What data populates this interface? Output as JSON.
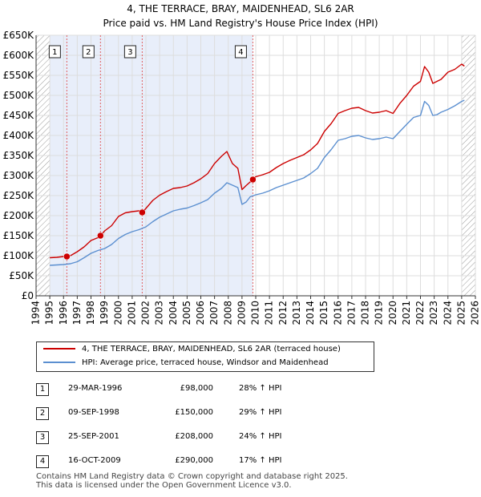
{
  "chart_data": {
    "type": "line",
    "title": "4, THE TERRACE, BRAY, MAIDENHEAD, SL6 2AR",
    "subtitle": "Price paid vs. HM Land Registry's House Price Index (HPI)",
    "xlim": [
      1994,
      2026
    ],
    "ylim": [
      0,
      650000
    ],
    "y_ticks": [
      0,
      50000,
      100000,
      150000,
      200000,
      250000,
      300000,
      350000,
      400000,
      450000,
      500000,
      550000,
      600000,
      650000
    ],
    "y_tick_labels": [
      "£0",
      "£50K",
      "£100K",
      "£150K",
      "£200K",
      "£250K",
      "£300K",
      "£350K",
      "£400K",
      "£450K",
      "£500K",
      "£550K",
      "£600K",
      "£650K"
    ],
    "x_ticks": [
      1994,
      1995,
      1996,
      1997,
      1998,
      1999,
      2000,
      2001,
      2002,
      2003,
      2004,
      2005,
      2006,
      2007,
      2008,
      2009,
      2010,
      2011,
      2012,
      2013,
      2014,
      2015,
      2016,
      2017,
      2018,
      2019,
      2020,
      2021,
      2022,
      2023,
      2024,
      2025,
      2026
    ],
    "x_tick_labels": [
      "1994",
      "1995",
      "1996",
      "1997",
      "1998",
      "1999",
      "2000",
      "2001",
      "2002",
      "2003",
      "2004",
      "2005",
      "2006",
      "2007",
      "2008",
      "2009",
      "2010",
      "2011",
      "2012",
      "2013",
      "2014",
      "2015",
      "2016",
      "2017",
      "2018",
      "2019",
      "2020",
      "2021",
      "2022",
      "2023",
      "2024",
      "2025",
      "2026"
    ],
    "grid": true,
    "shaded_ranges": [
      [
        1995.0,
        2009.79
      ]
    ],
    "hatched_ranges": [
      [
        1994.0,
        1995.0
      ],
      [
        2025.0,
        2026.0
      ]
    ],
    "series": [
      {
        "name": "4, THE TERRACE, BRAY, MAIDENHEAD, SL6 2AR (terraced house)",
        "color": "#cc0000",
        "x": [
          1995.0,
          1995.5,
          1996.0,
          1996.24,
          1996.5,
          1997.0,
          1997.5,
          1998.0,
          1998.5,
          1998.69,
          1999.0,
          1999.5,
          2000.0,
          2000.5,
          2001.0,
          2001.5,
          2001.73,
          2002.0,
          2002.5,
          2003.0,
          2003.5,
          2004.0,
          2004.5,
          2005.0,
          2005.5,
          2006.0,
          2006.5,
          2007.0,
          2007.5,
          2007.9,
          2008.3,
          2008.7,
          2009.0,
          2009.3,
          2009.79,
          2010.0,
          2010.5,
          2011.0,
          2011.5,
          2012.0,
          2012.5,
          2013.0,
          2013.5,
          2014.0,
          2014.5,
          2015.0,
          2015.5,
          2016.0,
          2016.5,
          2017.0,
          2017.5,
          2018.0,
          2018.5,
          2019.0,
          2019.5,
          2020.0,
          2020.5,
          2021.0,
          2021.5,
          2022.0,
          2022.3,
          2022.6,
          2022.9,
          2023.2,
          2023.5,
          2024.0,
          2024.5,
          2025.0,
          2025.2
        ],
        "values": [
          95000,
          96000,
          98000,
          98000,
          100000,
          110000,
          122000,
          138000,
          145000,
          150000,
          162000,
          175000,
          198000,
          207000,
          210000,
          212000,
          208000,
          218000,
          238000,
          251000,
          260000,
          268000,
          270000,
          274000,
          282000,
          292000,
          305000,
          330000,
          348000,
          360000,
          330000,
          318000,
          265000,
          275000,
          290000,
          297000,
          302000,
          308000,
          320000,
          330000,
          338000,
          345000,
          352000,
          364000,
          380000,
          410000,
          430000,
          455000,
          462000,
          468000,
          470000,
          462000,
          456000,
          458000,
          462000,
          455000,
          480000,
          500000,
          523000,
          535000,
          572000,
          558000,
          530000,
          535000,
          540000,
          558000,
          565000,
          578000,
          573000
        ]
      },
      {
        "name": "HPI: Average price, terraced house, Windsor and Maidenhead",
        "color": "#5b8fd0",
        "x": [
          1995.0,
          1995.5,
          1996.0,
          1996.5,
          1997.0,
          1997.5,
          1998.0,
          1998.5,
          1999.0,
          1999.5,
          2000.0,
          2000.5,
          2001.0,
          2001.5,
          2002.0,
          2002.5,
          2003.0,
          2003.5,
          2004.0,
          2004.5,
          2005.0,
          2005.5,
          2006.0,
          2006.5,
          2007.0,
          2007.5,
          2007.9,
          2008.3,
          2008.7,
          2009.0,
          2009.3,
          2009.6,
          2010.0,
          2010.5,
          2011.0,
          2011.5,
          2012.0,
          2012.5,
          2013.0,
          2013.5,
          2014.0,
          2014.5,
          2015.0,
          2015.5,
          2016.0,
          2016.5,
          2017.0,
          2017.5,
          2018.0,
          2018.5,
          2019.0,
          2019.5,
          2020.0,
          2020.5,
          2021.0,
          2021.5,
          2022.0,
          2022.3,
          2022.6,
          2022.9,
          2023.2,
          2023.5,
          2024.0,
          2024.5,
          2025.0,
          2025.2
        ],
        "values": [
          76000,
          77000,
          78000,
          80000,
          85000,
          95000,
          106000,
          113000,
          118000,
          128000,
          143000,
          153000,
          160000,
          165000,
          172000,
          185000,
          196000,
          204000,
          212000,
          216000,
          219000,
          225000,
          232000,
          240000,
          256000,
          268000,
          282000,
          276000,
          270000,
          228000,
          234000,
          247000,
          252000,
          256000,
          262000,
          270000,
          276000,
          282000,
          288000,
          294000,
          305000,
          318000,
          345000,
          365000,
          388000,
          392000,
          398000,
          400000,
          394000,
          390000,
          392000,
          396000,
          392000,
          410000,
          428000,
          445000,
          450000,
          485000,
          475000,
          450000,
          452000,
          458000,
          465000,
          474000,
          485000,
          488000
        ]
      }
    ],
    "sales": [
      {
        "label": "1",
        "x": 1996.24,
        "value": 98000
      },
      {
        "label": "2",
        "x": 1998.69,
        "value": 150000
      },
      {
        "label": "3",
        "x": 2001.73,
        "value": 208000
      },
      {
        "label": "4",
        "x": 2009.79,
        "value": 290000
      }
    ]
  },
  "legend": {
    "property_label": "4, THE TERRACE, BRAY, MAIDENHEAD, SL6 2AR (terraced house)",
    "hpi_label": "HPI: Average price, terraced house, Windsor and Maidenhead"
  },
  "transactions": [
    {
      "num": "1",
      "date": "29-MAR-1996",
      "price": "£98,000",
      "hpi": "28% ↑ HPI"
    },
    {
      "num": "2",
      "date": "09-SEP-1998",
      "price": "£150,000",
      "hpi": "29% ↑ HPI"
    },
    {
      "num": "3",
      "date": "25-SEP-2001",
      "price": "£208,000",
      "hpi": "24% ↑ HPI"
    },
    {
      "num": "4",
      "date": "16-OCT-2009",
      "price": "£290,000",
      "hpi": "17% ↑ HPI"
    }
  ],
  "footer": {
    "line1": "Contains HM Land Registry data © Crown copyright and database right 2025.",
    "line2": "This data is licensed under the Open Government Licence v3.0."
  }
}
